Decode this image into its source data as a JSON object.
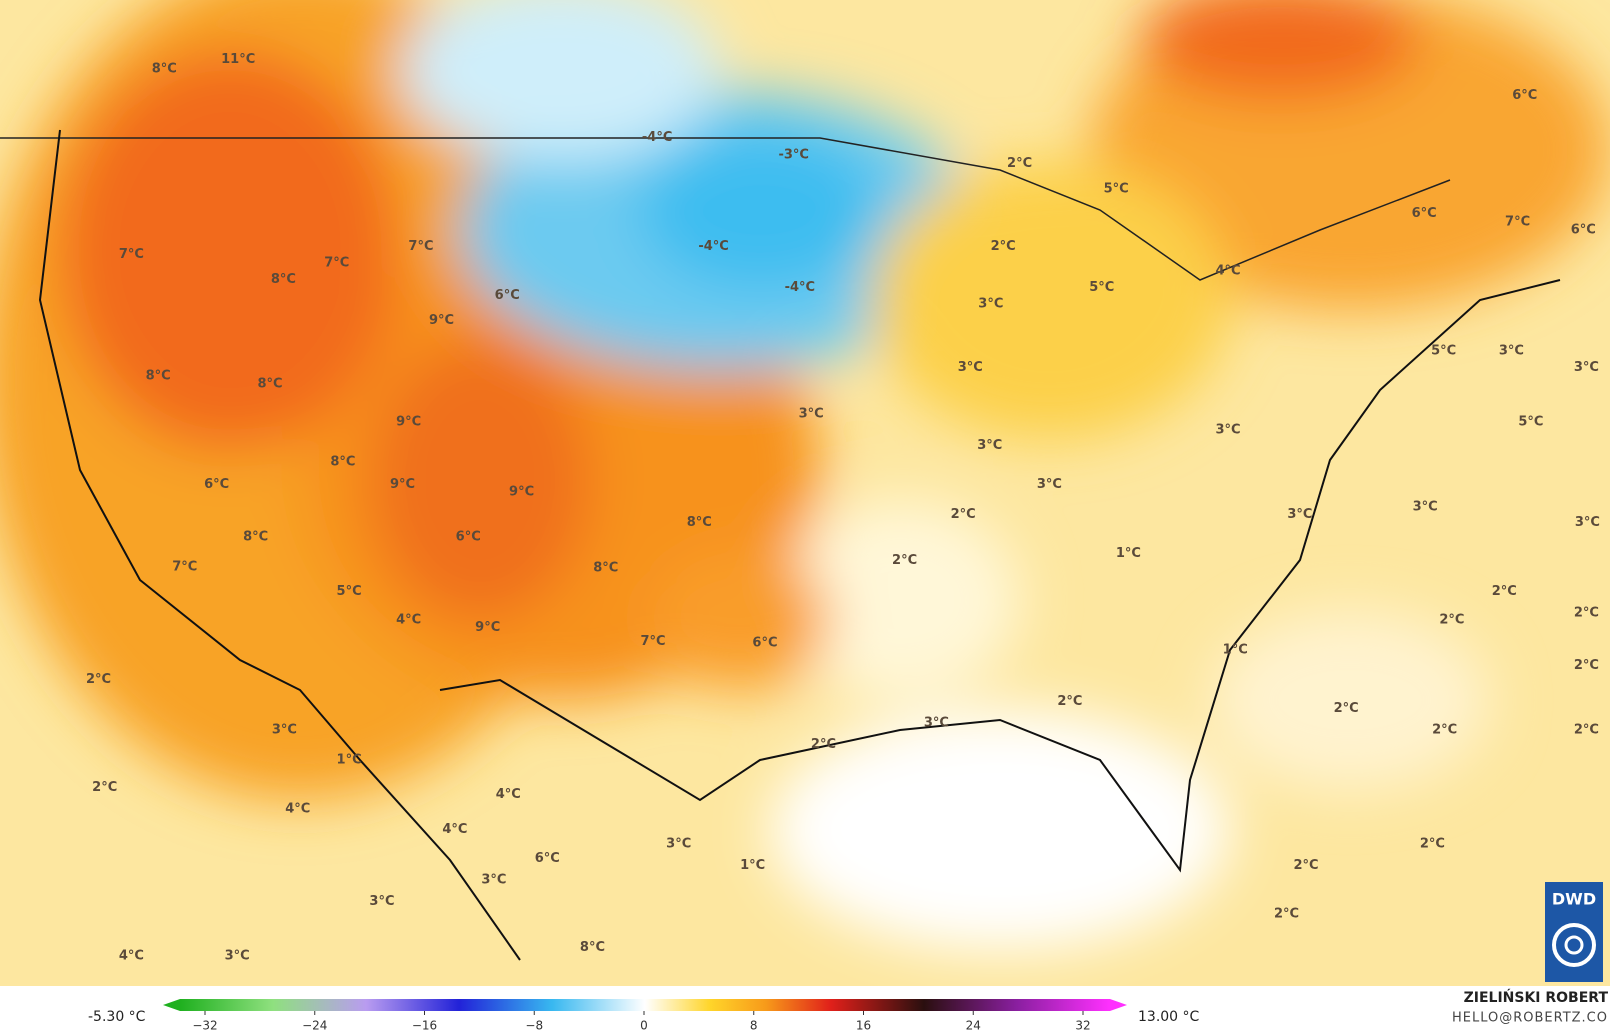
{
  "map": {
    "labels": [
      "8°C",
      "11°C",
      "-4°C",
      "-3°C",
      "2°C",
      "5°C",
      "6°C",
      "6°C",
      "7°C",
      "6°C",
      "7°C",
      "7°C",
      "7°C",
      "8°C",
      "6°C",
      "9°C",
      "-4°C",
      "-4°C",
      "2°C",
      "3°C",
      "5°C",
      "4°C",
      "8°C",
      "8°C",
      "3°C",
      "5°C",
      "3°C",
      "3°C",
      "5°C",
      "9°C",
      "3°C",
      "3°C",
      "3°C",
      "8°C",
      "9°C",
      "9°C",
      "3°C",
      "6°C",
      "2°C",
      "3°C",
      "3°C",
      "3°C",
      "8°C",
      "6°C",
      "8°C",
      "7°C",
      "8°C",
      "2°C",
      "1°C",
      "5°C",
      "4°C",
      "9°C",
      "7°C",
      "6°C",
      "2°C",
      "2°C",
      "2°C",
      "2°C",
      "1°C",
      "2°C",
      "2°C",
      "2°C",
      "3°C",
      "3°C",
      "2°C",
      "2°C",
      "2°C",
      "1°C",
      "2°C",
      "4°C",
      "4°C",
      "4°C",
      "3°C",
      "2°C",
      "6°C",
      "1°C",
      "2°C",
      "3°C",
      "3°C",
      "2°C",
      "4°C",
      "3°C",
      "8°C"
    ]
  },
  "legend": {
    "min_label": "-5.30 °C",
    "max_label": "13.00 °C",
    "ticks": [
      {
        "value": -32,
        "label": "−32"
      },
      {
        "value": -24,
        "label": "−24"
      },
      {
        "value": -16,
        "label": "−16"
      },
      {
        "value": -8,
        "label": "−8"
      },
      {
        "value": 0,
        "label": "0"
      },
      {
        "value": 8,
        "label": "8"
      },
      {
        "value": 16,
        "label": "16"
      },
      {
        "value": 24,
        "label": "24"
      },
      {
        "value": 32,
        "label": "32"
      }
    ]
  },
  "credit": {
    "author": "ZIELIŃSKI ROBERT",
    "email": "HELLO@ROBERTZ.CO"
  },
  "logo": "DWD"
}
